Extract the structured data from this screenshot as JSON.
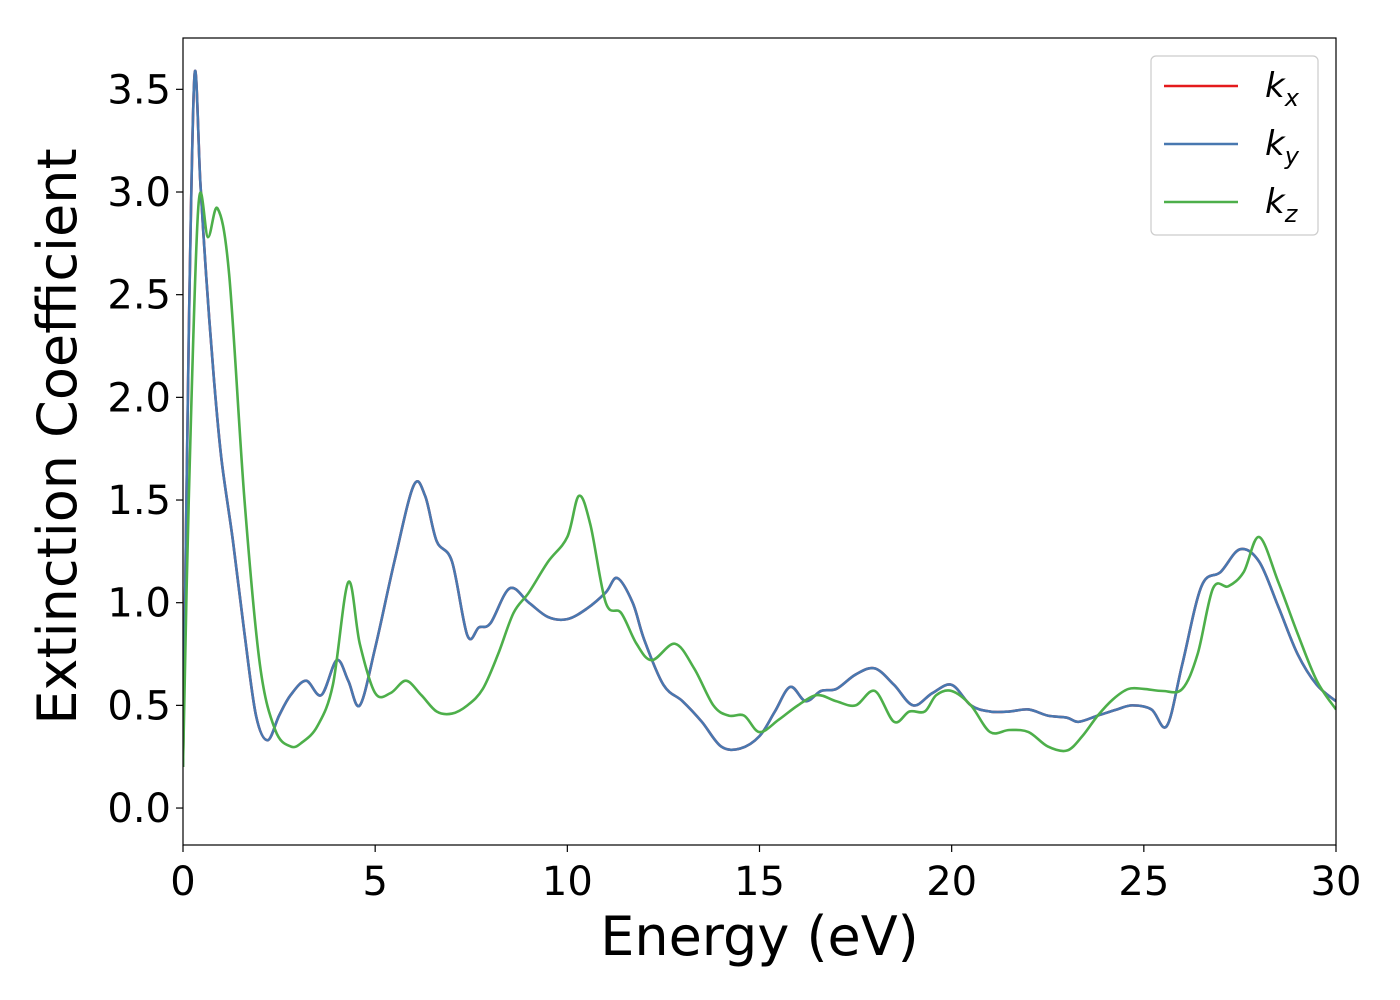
{
  "chart_data": {
    "type": "line",
    "title": "",
    "xlabel": "Energy (eV)",
    "ylabel": "Extinction Coefficient",
    "xlim": [
      0,
      30
    ],
    "ylim": [
      -0.18,
      3.75
    ],
    "xticks": [
      0,
      5,
      10,
      15,
      20,
      25,
      30
    ],
    "xtick_labels": [
      "0",
      "5",
      "10",
      "15",
      "20",
      "25",
      "30"
    ],
    "yticks": [
      0.0,
      0.5,
      1.0,
      1.5,
      2.0,
      2.5,
      3.0,
      3.5
    ],
    "ytick_labels": [
      "0.0",
      "0.5",
      "1.0",
      "1.5",
      "2.0",
      "2.5",
      "3.0",
      "3.5"
    ],
    "grid": false,
    "legend_position": "top-right",
    "series": [
      {
        "name": "k_x",
        "legend_base": "k",
        "legend_sub": "x",
        "color": "#e41a1c",
        "x": [
          0,
          0.15,
          0.3,
          0.45,
          0.6,
          0.8,
          1.0,
          1.3,
          1.6,
          1.9,
          2.2,
          2.5,
          2.8,
          3.2,
          3.6,
          4.0,
          4.3,
          4.6,
          5.0,
          5.5,
          6.0,
          6.3,
          6.6,
          7.0,
          7.4,
          7.7,
          8.0,
          8.5,
          9.0,
          9.5,
          10.0,
          10.5,
          11.0,
          11.3,
          11.7,
          12.0,
          12.5,
          13.0,
          13.5,
          14.0,
          14.5,
          15.0,
          15.4,
          15.8,
          16.2,
          16.6,
          17.0,
          17.5,
          18.0,
          18.5,
          19.0,
          19.5,
          20.0,
          20.5,
          21.0,
          21.5,
          22.0,
          22.5,
          23.0,
          23.3,
          23.8,
          24.3,
          24.7,
          25.2,
          25.6,
          26.0,
          26.5,
          27.0,
          27.5,
          28.0,
          28.5,
          29.0,
          29.5,
          30.0
        ],
        "y": [
          0.2,
          2.3,
          3.57,
          3.05,
          2.6,
          2.1,
          1.7,
          1.3,
          0.85,
          0.45,
          0.33,
          0.45,
          0.55,
          0.62,
          0.55,
          0.72,
          0.62,
          0.5,
          0.78,
          1.2,
          1.57,
          1.52,
          1.3,
          1.2,
          0.84,
          0.88,
          0.9,
          1.07,
          1.0,
          0.93,
          0.92,
          0.97,
          1.05,
          1.12,
          1.0,
          0.82,
          0.6,
          0.52,
          0.42,
          0.3,
          0.29,
          0.35,
          0.47,
          0.59,
          0.52,
          0.57,
          0.58,
          0.65,
          0.68,
          0.6,
          0.5,
          0.56,
          0.6,
          0.5,
          0.47,
          0.47,
          0.48,
          0.45,
          0.44,
          0.42,
          0.45,
          0.48,
          0.5,
          0.48,
          0.4,
          0.7,
          1.08,
          1.15,
          1.26,
          1.2,
          0.98,
          0.75,
          0.6,
          0.52
        ]
      },
      {
        "name": "k_y",
        "legend_base": "k",
        "legend_sub": "y",
        "color": "#4878b0",
        "x": [
          0,
          0.15,
          0.3,
          0.45,
          0.6,
          0.8,
          1.0,
          1.3,
          1.6,
          1.9,
          2.2,
          2.5,
          2.8,
          3.2,
          3.6,
          4.0,
          4.3,
          4.6,
          5.0,
          5.5,
          6.0,
          6.3,
          6.6,
          7.0,
          7.4,
          7.7,
          8.0,
          8.5,
          9.0,
          9.5,
          10.0,
          10.5,
          11.0,
          11.3,
          11.7,
          12.0,
          12.5,
          13.0,
          13.5,
          14.0,
          14.5,
          15.0,
          15.4,
          15.8,
          16.2,
          16.6,
          17.0,
          17.5,
          18.0,
          18.5,
          19.0,
          19.5,
          20.0,
          20.5,
          21.0,
          21.5,
          22.0,
          22.5,
          23.0,
          23.3,
          23.8,
          24.3,
          24.7,
          25.2,
          25.6,
          26.0,
          26.5,
          27.0,
          27.5,
          28.0,
          28.5,
          29.0,
          29.5,
          30.0
        ],
        "y": [
          0.2,
          2.3,
          3.57,
          3.05,
          2.6,
          2.1,
          1.7,
          1.3,
          0.85,
          0.45,
          0.33,
          0.45,
          0.55,
          0.62,
          0.55,
          0.72,
          0.62,
          0.5,
          0.78,
          1.2,
          1.57,
          1.52,
          1.3,
          1.2,
          0.84,
          0.88,
          0.9,
          1.07,
          1.0,
          0.93,
          0.92,
          0.97,
          1.05,
          1.12,
          1.0,
          0.82,
          0.6,
          0.52,
          0.42,
          0.3,
          0.29,
          0.35,
          0.47,
          0.59,
          0.52,
          0.57,
          0.58,
          0.65,
          0.68,
          0.6,
          0.5,
          0.56,
          0.6,
          0.5,
          0.47,
          0.47,
          0.48,
          0.45,
          0.44,
          0.42,
          0.45,
          0.48,
          0.5,
          0.48,
          0.4,
          0.7,
          1.08,
          1.15,
          1.26,
          1.2,
          0.98,
          0.75,
          0.6,
          0.52
        ]
      },
      {
        "name": "k_z",
        "legend_base": "k",
        "legend_sub": "z",
        "color": "#4daf4a",
        "x": [
          0,
          0.15,
          0.4,
          0.65,
          0.9,
          1.2,
          1.6,
          2.0,
          2.4,
          2.8,
          3.1,
          3.5,
          3.9,
          4.3,
          4.6,
          5.0,
          5.4,
          5.8,
          6.2,
          6.6,
          7.0,
          7.4,
          7.8,
          8.2,
          8.6,
          9.0,
          9.5,
          10.0,
          10.3,
          10.6,
          11.0,
          11.4,
          11.8,
          12.2,
          12.8,
          13.3,
          13.8,
          14.2,
          14.6,
          15.0,
          15.5,
          16.0,
          16.5,
          17.0,
          17.5,
          18.0,
          18.5,
          18.9,
          19.3,
          19.6,
          20.0,
          20.5,
          21.0,
          21.5,
          22.0,
          22.5,
          23.0,
          23.4,
          23.8,
          24.2,
          24.6,
          25.0,
          25.5,
          26.0,
          26.4,
          26.8,
          27.2,
          27.6,
          28.0,
          28.5,
          29.0,
          29.5,
          30.0
        ],
        "y": [
          0.2,
          1.5,
          2.93,
          2.78,
          2.92,
          2.6,
          1.5,
          0.7,
          0.38,
          0.3,
          0.32,
          0.4,
          0.6,
          1.1,
          0.8,
          0.56,
          0.56,
          0.62,
          0.55,
          0.47,
          0.46,
          0.5,
          0.58,
          0.75,
          0.95,
          1.05,
          1.2,
          1.32,
          1.52,
          1.38,
          1.0,
          0.95,
          0.8,
          0.72,
          0.8,
          0.68,
          0.5,
          0.45,
          0.45,
          0.37,
          0.43,
          0.5,
          0.55,
          0.52,
          0.5,
          0.57,
          0.42,
          0.47,
          0.47,
          0.55,
          0.57,
          0.5,
          0.37,
          0.38,
          0.37,
          0.3,
          0.28,
          0.35,
          0.45,
          0.53,
          0.58,
          0.58,
          0.57,
          0.58,
          0.75,
          1.07,
          1.08,
          1.15,
          1.32,
          1.1,
          0.85,
          0.62,
          0.48
        ]
      }
    ]
  }
}
